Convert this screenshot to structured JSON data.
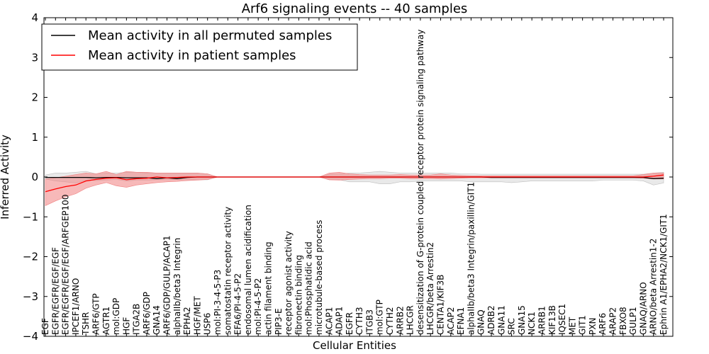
{
  "chart_data": {
    "type": "line",
    "title": "Arf6 signaling events -- 40 samples",
    "xlabel": "Cellular Entities",
    "ylabel": "Inferred Activity",
    "ylim": [
      -4,
      4
    ],
    "yticks": [
      "4",
      "3",
      "2",
      "1",
      "0",
      "−1",
      "−2",
      "−3",
      "−4"
    ],
    "grid": false,
    "legend_position": "top-left",
    "colors": {
      "permuted": "#000000",
      "patient": "#ff0000",
      "permuted_band": "#bfbfbf",
      "patient_band": "#f08080"
    },
    "categories": [
      "EGF",
      "EGFR/EGFR/EGF/EGF",
      "EGFR/EGFR/EGF/EGF/ARFGEP100",
      "IPCEF1/ARNO",
      "TSHR",
      "ARF6/GTP",
      "AGTR1",
      "mol:GDP",
      "HGF",
      "ITGA2B",
      "ARF6/GDP",
      "GNA14",
      "ARF6/GDP/GULP/ACAP1",
      "alphaIIb/beta3 Integrin",
      "EPHA2",
      "HGF/MET",
      "USP6",
      "mol:PI-3-4-5-P3",
      "somatostatin receptor activity",
      "EFA6/PI-4-5-P2",
      "endosomal lumen acidification",
      "mol:PI-4-5-P2",
      "actin filament binding",
      "PIP3-E",
      "receptor agonist activity",
      "fibronectin binding",
      "mol:Phosphatidic acid",
      "microtubule-based process",
      "ACAP1",
      "ADAP1",
      "EGFR",
      "CYTH3",
      "ITGB3",
      "mol:GTP",
      "CYTH2",
      "ARRB2",
      "LHCGR",
      "desensitization of G-protein coupled receptor protein signaling pathway",
      "LHCGR/beta Arrestin2",
      "CENTA1/KIF3B",
      "ACAP2",
      "EFNA1",
      "alphaIIb/beta3 Integrin/paxillin/GIT1",
      "GNAQ",
      "ADRB2",
      "GNA11",
      "SRC",
      "GNA15",
      "NCK1",
      "ARRB1",
      "KIF13B",
      "IQSEC1",
      "MET",
      "GIT1",
      "PXN",
      "ARF6",
      "ARAP2",
      "FBXO8",
      "GULP1",
      "GNAQ/ARNO",
      "ARNO/beta Arrestin1-2",
      "Ephrin A1/EPHA2/NCK1/GIT1"
    ],
    "series": [
      {
        "name": "Mean activity in all permuted samples",
        "values": [
          -0.01,
          -0.01,
          -0.01,
          -0.01,
          -0.01,
          -0.02,
          -0.01,
          -0.01,
          -0.02,
          -0.02,
          -0.02,
          -0.04,
          -0.02,
          -0.04,
          -0.01,
          0,
          0,
          0,
          0,
          0,
          0,
          0,
          0,
          0,
          0,
          0,
          0,
          0,
          0,
          0,
          0,
          0,
          0,
          0,
          0,
          0,
          0,
          0,
          0,
          0,
          0,
          0,
          0,
          0,
          -0.01,
          -0.01,
          -0.01,
          -0.01,
          -0.01,
          -0.01,
          -0.01,
          -0.01,
          -0.01,
          -0.01,
          -0.01,
          -0.01,
          -0.01,
          -0.01,
          -0.01,
          -0.01,
          -0.04,
          -0.03
        ],
        "band_lower": [
          -0.05,
          -0.1,
          -0.12,
          -0.15,
          -0.08,
          -0.09,
          -0.08,
          -0.06,
          -0.1,
          -0.08,
          -0.08,
          -0.07,
          -0.07,
          -0.07,
          -0.07,
          -0.07,
          -0.07,
          0,
          0,
          0,
          0,
          0,
          0,
          0,
          0,
          0,
          0,
          0,
          -0.07,
          -0.07,
          -0.12,
          -0.12,
          -0.12,
          -0.17,
          -0.17,
          -0.12,
          -0.12,
          -0.1,
          -0.1,
          -0.1,
          -0.1,
          -0.1,
          -0.12,
          -0.12,
          -0.12,
          -0.12,
          -0.14,
          -0.12,
          -0.1,
          -0.1,
          -0.1,
          -0.1,
          -0.1,
          -0.1,
          -0.1,
          -0.08,
          -0.08,
          -0.08,
          -0.08,
          -0.1,
          -0.2,
          -0.15
        ],
        "band_upper": [
          0.05,
          0.1,
          0.1,
          0.12,
          0.14,
          0.08,
          0.1,
          0.1,
          0.12,
          0.12,
          0.1,
          0.1,
          0.1,
          0.1,
          0.1,
          0.1,
          0.08,
          0,
          0,
          0,
          0,
          0,
          0,
          0,
          0,
          0,
          0,
          0,
          0.07,
          0.08,
          0.1,
          0.1,
          0.12,
          0.14,
          0.12,
          0.1,
          0.1,
          0.1,
          0.1,
          0.1,
          0.1,
          0.08,
          0.08,
          0.07,
          0.07,
          0.07,
          0.07,
          0.07,
          0.07,
          0.07,
          0.07,
          0.07,
          0.07,
          0.07,
          0.07,
          0.07,
          0.07,
          0.07,
          0.07,
          0.07,
          0.1,
          0.12
        ]
      },
      {
        "name": "Mean activity in patient samples",
        "values": [
          -0.37,
          -0.3,
          -0.24,
          -0.2,
          -0.1,
          -0.06,
          -0.03,
          -0.02,
          -0.07,
          -0.04,
          -0.03,
          0,
          -0.02,
          -0.01,
          0,
          0,
          0,
          0,
          0,
          0,
          0,
          0,
          0,
          0,
          0,
          0,
          0,
          0,
          0,
          0,
          0,
          0,
          0,
          0,
          0,
          0,
          0,
          0,
          0,
          0,
          0,
          0,
          0,
          0,
          0,
          0,
          0,
          0,
          0,
          0,
          0,
          0,
          0,
          0,
          0,
          0,
          0,
          0,
          0,
          0,
          0.02,
          0.05
        ],
        "band_lower": [
          -0.72,
          -0.6,
          -0.5,
          -0.42,
          -0.28,
          -0.2,
          -0.14,
          -0.22,
          -0.26,
          -0.2,
          -0.17,
          -0.14,
          -0.12,
          -0.11,
          -0.09,
          -0.08,
          -0.06,
          0,
          0,
          0,
          0,
          0,
          0,
          0,
          0,
          0,
          0,
          0,
          -0.07,
          -0.08,
          -0.06,
          -0.05,
          -0.04,
          -0.04,
          -0.03,
          -0.03,
          -0.04,
          -0.04,
          -0.04,
          -0.05,
          -0.04,
          -0.03,
          -0.02,
          -0.02,
          -0.02,
          -0.02,
          -0.02,
          -0.02,
          -0.02,
          -0.02,
          -0.02,
          -0.02,
          -0.02,
          -0.02,
          -0.02,
          -0.02,
          -0.02,
          -0.02,
          -0.02,
          -0.03,
          -0.05,
          -0.05
        ],
        "band_upper": [
          -0.05,
          -0.02,
          0.02,
          0.06,
          0.1,
          0.08,
          0.14,
          0.06,
          0.14,
          0.12,
          0.12,
          0.1,
          0.1,
          0.1,
          0.1,
          0.1,
          0.08,
          0,
          0,
          0,
          0,
          0,
          0,
          0,
          0,
          0,
          0,
          0,
          0.1,
          0.12,
          0.08,
          0.06,
          0.05,
          0.05,
          0.05,
          0.06,
          0.05,
          0.05,
          0.05,
          0.08,
          0.05,
          0.04,
          0.03,
          0.03,
          0.03,
          0.03,
          0.03,
          0.03,
          0.03,
          0.03,
          0.03,
          0.03,
          0.03,
          0.03,
          0.03,
          0.03,
          0.03,
          0.03,
          0.03,
          0.06,
          0.1,
          0.1
        ]
      }
    ]
  }
}
